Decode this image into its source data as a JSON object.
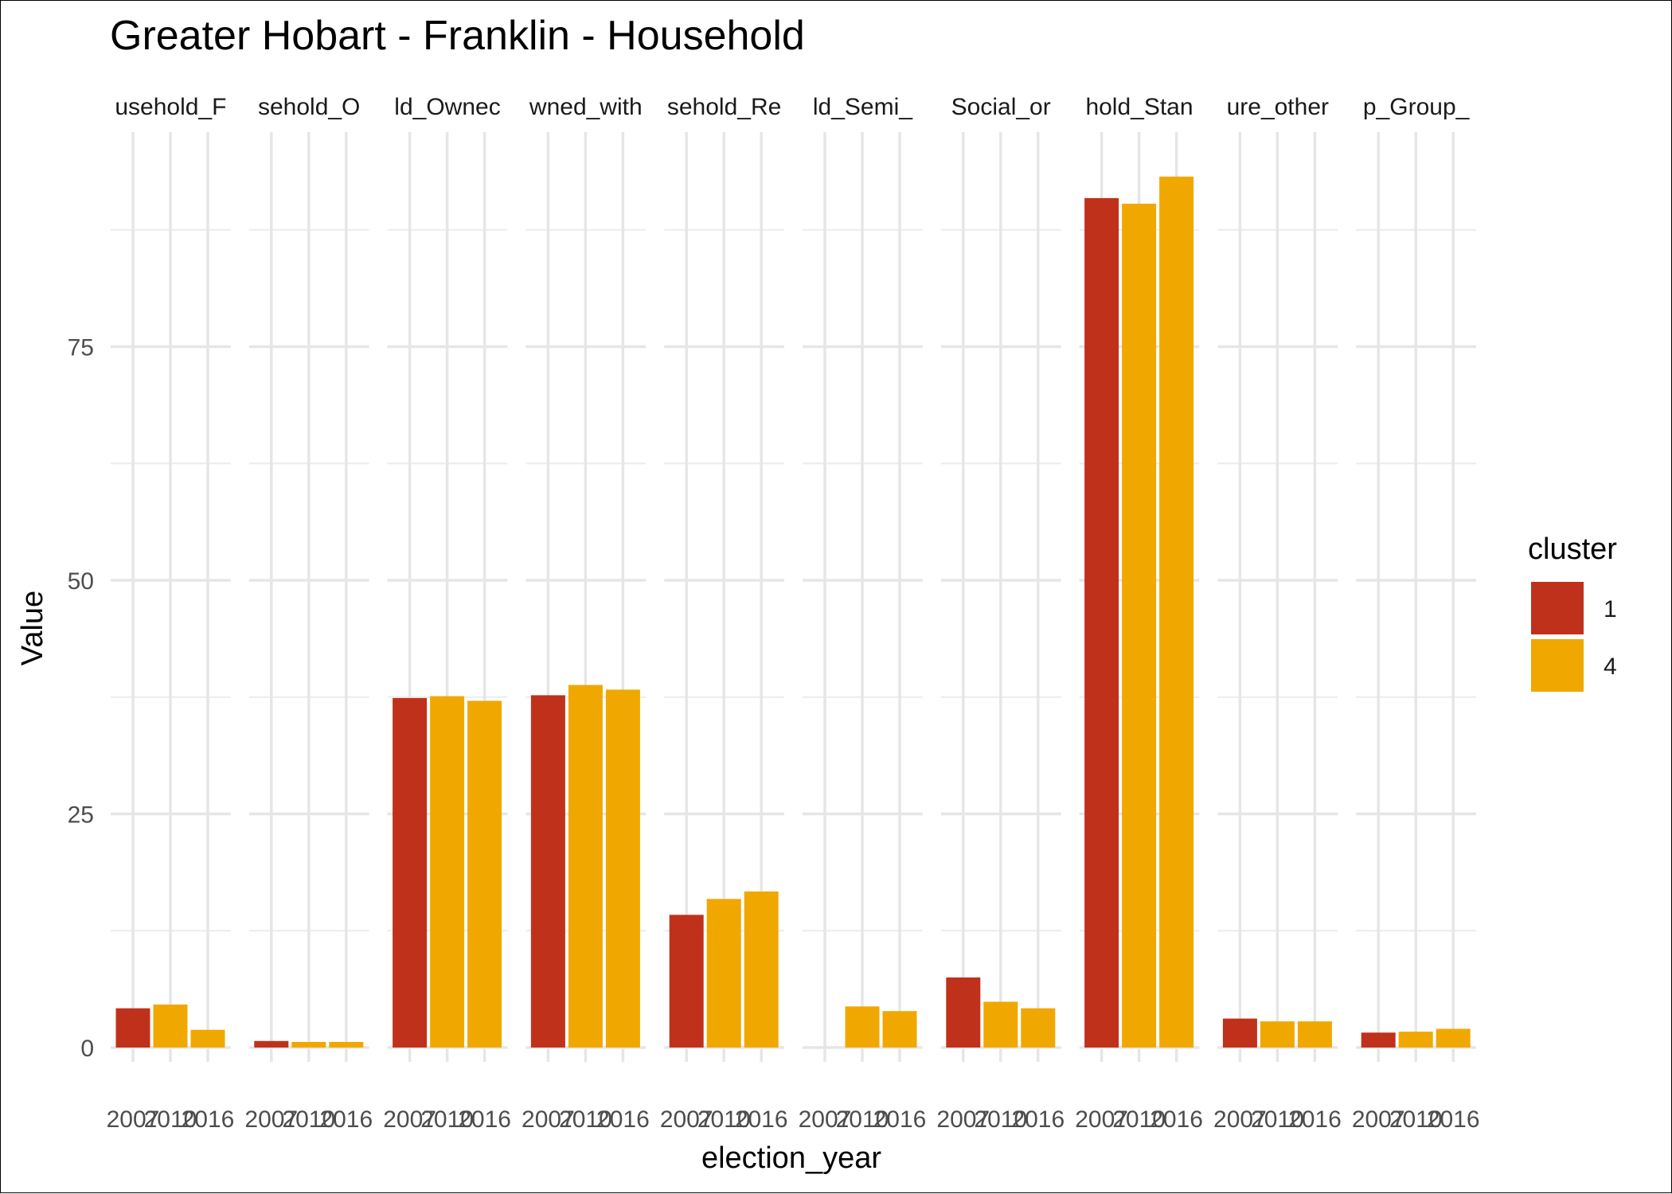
{
  "chart_data": {
    "type": "bar",
    "title": "Greater Hobart - Franklin - Household",
    "xlabel": "election_year",
    "ylabel": "Value",
    "ylim": [
      0,
      100
    ],
    "yticks": [
      0,
      25,
      50,
      75
    ],
    "grid": true,
    "legend": {
      "title": "cluster",
      "placement": "right",
      "entries": [
        {
          "label": "1",
          "color": "#C0311B"
        },
        {
          "label": "4",
          "color": "#F0A800"
        }
      ]
    },
    "categories": [
      "2007",
      "2010",
      "2016"
    ],
    "facets": [
      {
        "label": "usehold_F",
        "values": [
          4.2,
          4.6,
          1.9
        ],
        "clusters": [
          "1",
          "4",
          "4"
        ]
      },
      {
        "label": "sehold_O",
        "values": [
          0.7,
          0.6,
          0.6
        ],
        "clusters": [
          "1",
          "4",
          "4"
        ]
      },
      {
        "label": "ld_Ownec",
        "values": [
          37.4,
          37.6,
          37.1
        ],
        "clusters": [
          "1",
          "4",
          "4"
        ]
      },
      {
        "label": "wned_with",
        "values": [
          37.7,
          38.8,
          38.3
        ],
        "clusters": [
          "1",
          "4",
          "4"
        ]
      },
      {
        "label": "sehold_Re",
        "values": [
          14.2,
          15.9,
          16.7
        ],
        "clusters": [
          "1",
          "4",
          "4"
        ]
      },
      {
        "label": "ld_Semi_",
        "values": [
          null,
          4.4,
          3.9
        ],
        "clusters": [
          "",
          "4",
          "4"
        ]
      },
      {
        "label": "Social_or",
        "values": [
          7.5,
          4.9,
          4.2
        ],
        "clusters": [
          "1",
          "4",
          "4"
        ]
      },
      {
        "label": "hold_Stan",
        "values": [
          90.9,
          90.3,
          93.2
        ],
        "clusters": [
          "1",
          "4",
          "4"
        ]
      },
      {
        "label": "ure_other",
        "values": [
          3.1,
          2.8,
          2.8
        ],
        "clusters": [
          "1",
          "4",
          "4"
        ]
      },
      {
        "label": "p_Group_",
        "values": [
          1.6,
          1.7,
          2.0
        ],
        "clusters": [
          "1",
          "4",
          "4"
        ]
      }
    ]
  }
}
